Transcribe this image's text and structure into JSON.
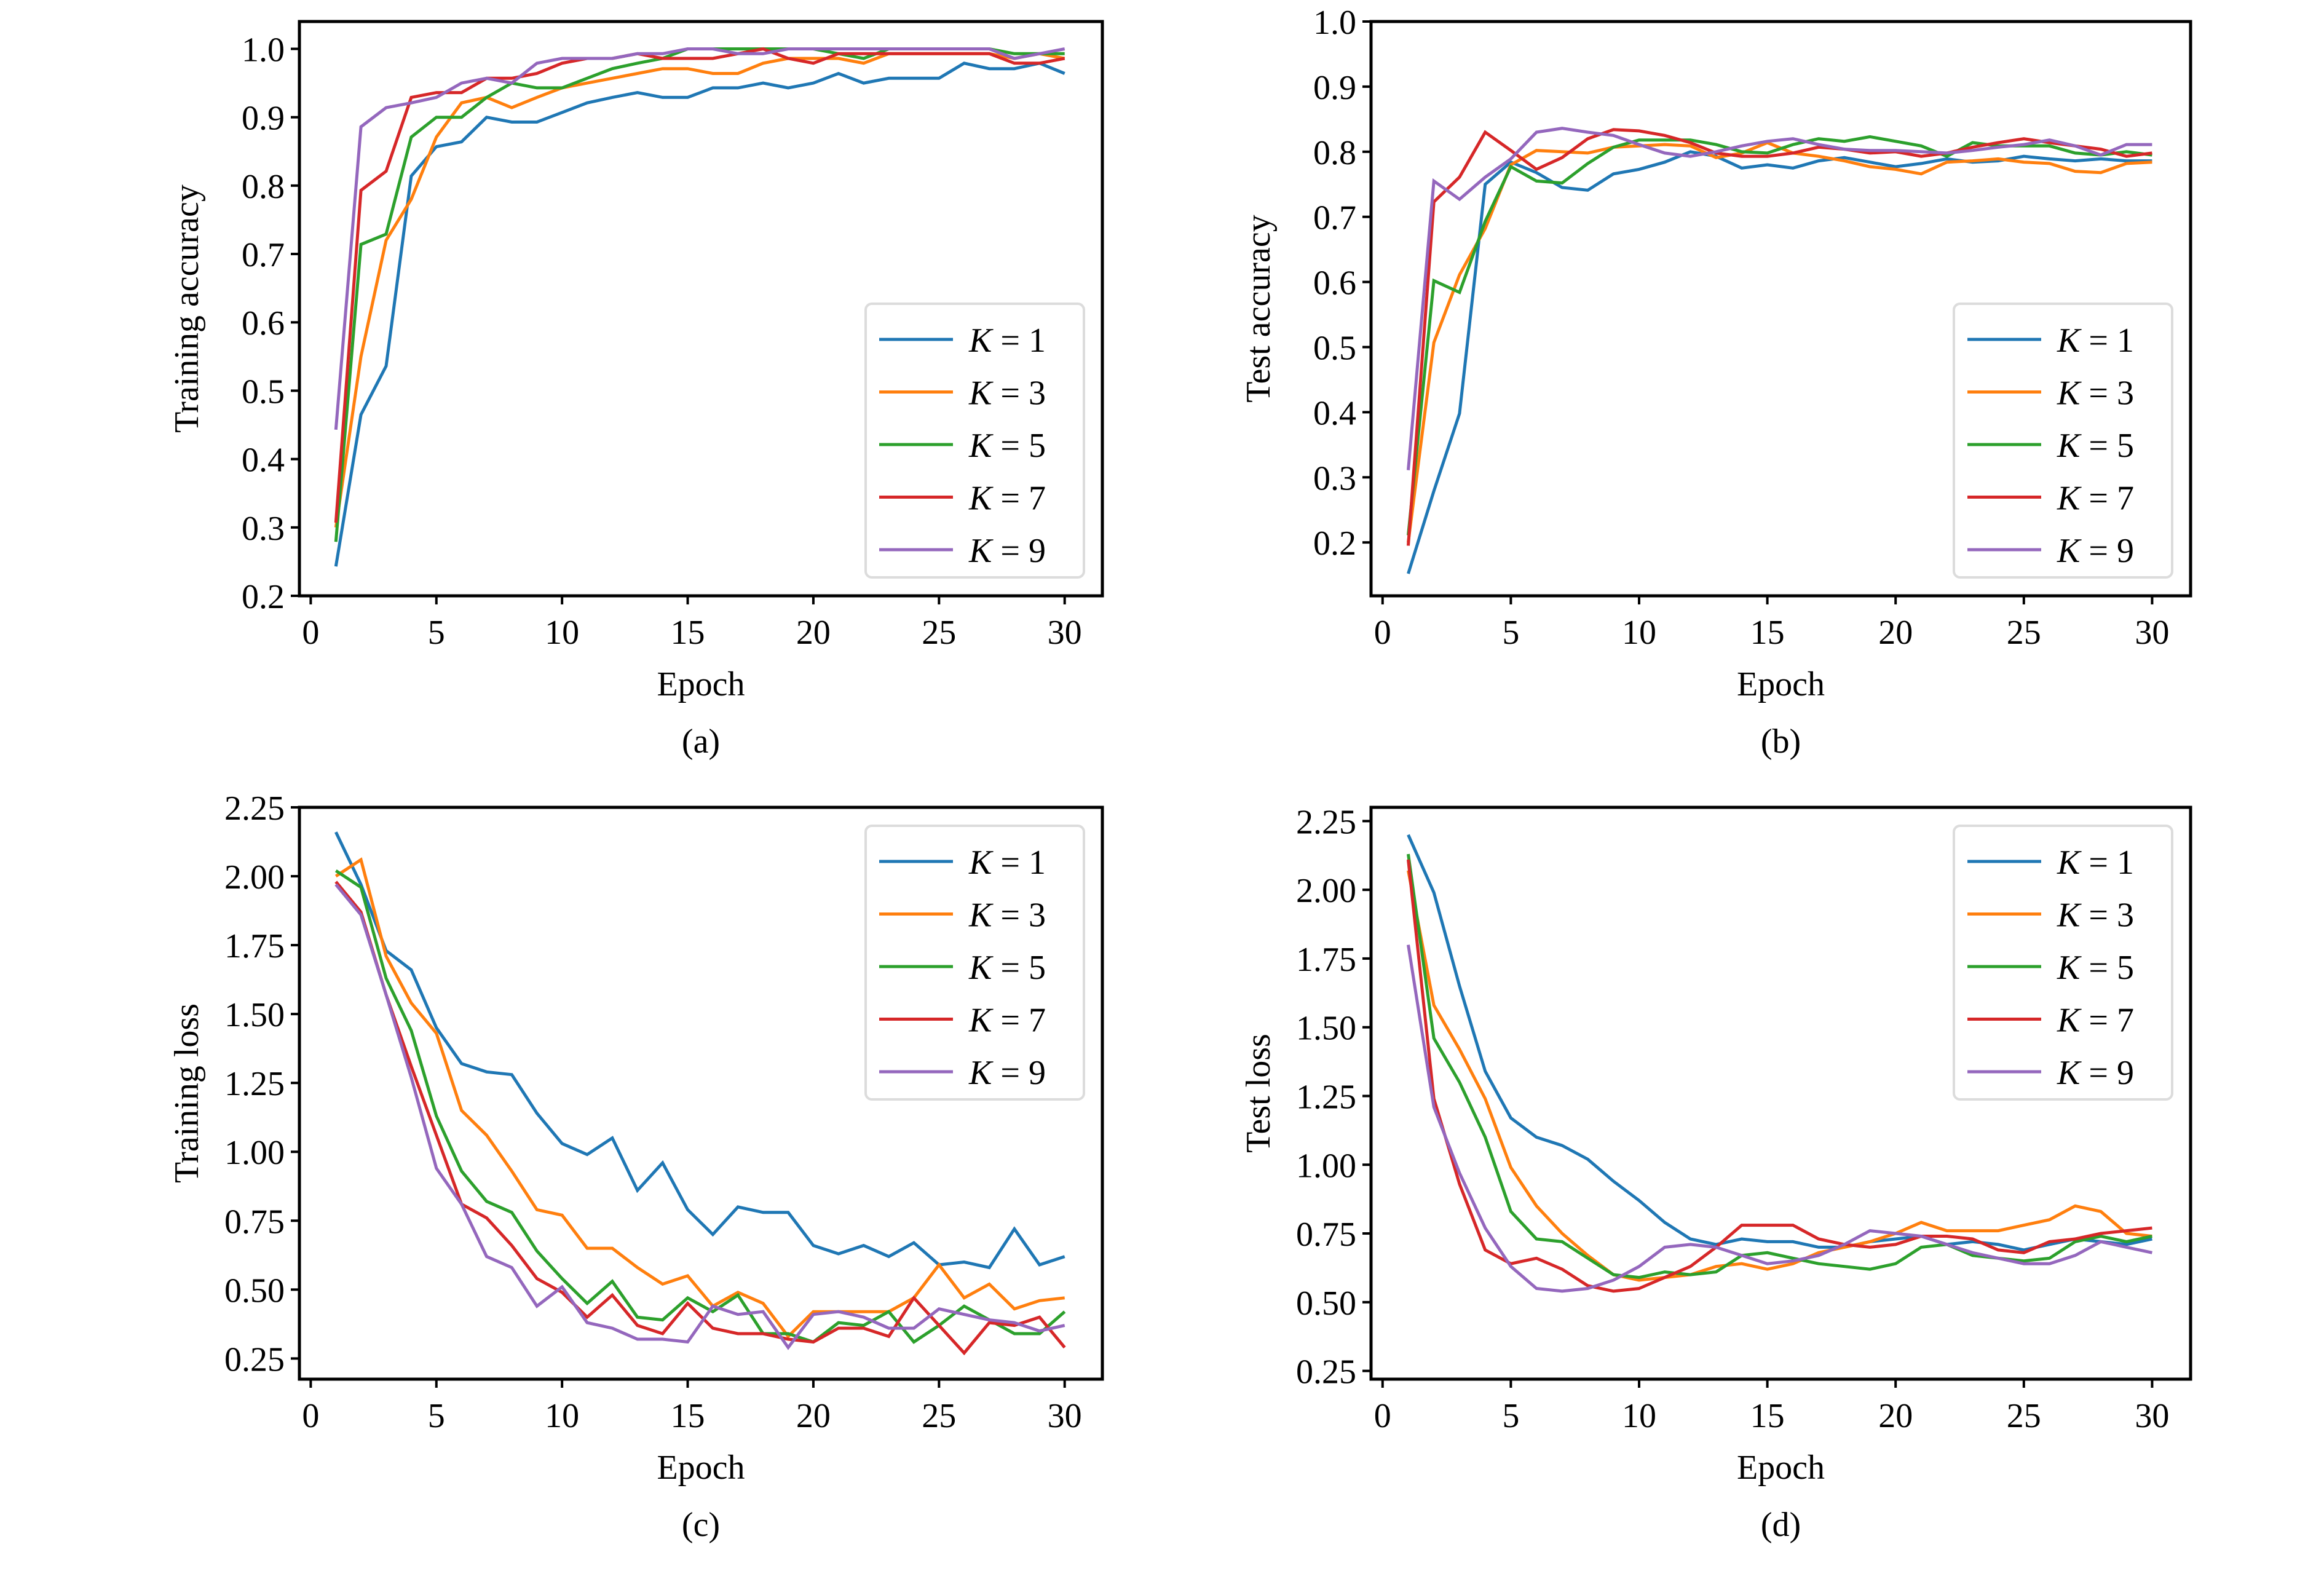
{
  "figure": {
    "colors": {
      "K = 1": "#1f77b4",
      "K = 3": "#ff7f0e",
      "K = 5": "#2ca02c",
      "K = 7": "#d62728",
      "K = 9": "#9467bd"
    },
    "legend_entries": [
      {
        "var": "K",
        "eq": " = 1",
        "key": "K = 1"
      },
      {
        "var": "K",
        "eq": " = 3",
        "key": "K = 3"
      },
      {
        "var": "K",
        "eq": " = 5",
        "key": "K = 5"
      },
      {
        "var": "K",
        "eq": " = 7",
        "key": "K = 7"
      },
      {
        "var": "K",
        "eq": " = 9",
        "key": "K = 9"
      }
    ]
  },
  "chart_data": [
    {
      "id": "a",
      "type": "line",
      "caption": "(a)",
      "title": "",
      "xlabel": "Epoch",
      "ylabel": "Training accuracy",
      "xlim": [
        -0.45,
        31.5
      ],
      "ylim": [
        0.2,
        1.04
      ],
      "xticks": [
        0,
        5,
        10,
        15,
        20,
        25,
        30
      ],
      "xtick_labels": [
        "0",
        "5",
        "10",
        "15",
        "20",
        "25",
        "30"
      ],
      "yticks": [
        0.2,
        0.3,
        0.4,
        0.5,
        0.6,
        0.7,
        0.8,
        0.9,
        1.0
      ],
      "ytick_labels": [
        "0.2",
        "0.3",
        "0.4",
        "0.5",
        "0.6",
        "0.7",
        "0.8",
        "0.9",
        "1.0"
      ],
      "grid": false,
      "legend_position": "lower-right",
      "x": [
        1,
        2,
        3,
        4,
        5,
        6,
        7,
        8,
        9,
        10,
        11,
        12,
        13,
        14,
        15,
        16,
        17,
        18,
        19,
        20,
        21,
        22,
        23,
        24,
        25,
        26,
        27,
        28,
        29,
        30
      ],
      "series": [
        {
          "name": "K = 1",
          "values": [
            0.243,
            0.465,
            0.536,
            0.814,
            0.857,
            0.864,
            0.9,
            0.893,
            0.893,
            0.907,
            0.921,
            0.929,
            0.936,
            0.929,
            0.929,
            0.943,
            0.943,
            0.95,
            0.943,
            0.95,
            0.964,
            0.95,
            0.957,
            0.957,
            0.957,
            0.979,
            0.971,
            0.971,
            0.979,
            0.964
          ]
        },
        {
          "name": "K = 3",
          "values": [
            0.3,
            0.55,
            0.72,
            0.78,
            0.871,
            0.921,
            0.929,
            0.914,
            0.929,
            0.943,
            0.95,
            0.957,
            0.964,
            0.971,
            0.971,
            0.964,
            0.964,
            0.979,
            0.986,
            0.986,
            0.986,
            0.979,
            0.993,
            0.993,
            0.993,
            0.993,
            0.993,
            0.986,
            0.993,
            0.986
          ]
        },
        {
          "name": "K = 5",
          "values": [
            0.279,
            0.714,
            0.729,
            0.871,
            0.9,
            0.9,
            0.929,
            0.95,
            0.943,
            0.943,
            0.957,
            0.971,
            0.979,
            0.986,
            1.0,
            1.0,
            1.0,
            1.0,
            1.0,
            1.0,
            0.993,
            0.986,
            1.0,
            1.0,
            1.0,
            1.0,
            1.0,
            0.993,
            0.993,
            0.993
          ]
        },
        {
          "name": "K = 7",
          "values": [
            0.307,
            0.793,
            0.821,
            0.929,
            0.936,
            0.936,
            0.957,
            0.957,
            0.964,
            0.979,
            0.986,
            0.986,
            0.993,
            0.986,
            0.986,
            0.986,
            0.993,
            1.0,
            0.986,
            0.979,
            0.993,
            0.993,
            0.993,
            0.993,
            0.993,
            0.993,
            0.993,
            0.979,
            0.979,
            0.986
          ]
        },
        {
          "name": "K = 9",
          "values": [
            0.443,
            0.886,
            0.914,
            0.921,
            0.929,
            0.95,
            0.957,
            0.95,
            0.979,
            0.986,
            0.986,
            0.986,
            0.993,
            0.993,
            1.0,
            1.0,
            0.993,
            0.993,
            1.0,
            1.0,
            1.0,
            1.0,
            1.0,
            1.0,
            1.0,
            1.0,
            1.0,
            0.986,
            0.993,
            1.0
          ]
        }
      ]
    },
    {
      "id": "b",
      "type": "line",
      "caption": "(b)",
      "title": "",
      "xlabel": "Epoch",
      "ylabel": "Test accuracy",
      "xlim": [
        -0.45,
        31.5
      ],
      "ylim": [
        0.118,
        1.0
      ],
      "xticks": [
        0,
        5,
        10,
        15,
        20,
        25,
        30
      ],
      "xtick_labels": [
        "0",
        "5",
        "10",
        "15",
        "20",
        "25",
        "30"
      ],
      "yticks": [
        0.2,
        0.3,
        0.4,
        0.5,
        0.6,
        0.7,
        0.8,
        0.9,
        1.0
      ],
      "ytick_labels": [
        "0.2",
        "0.3",
        "0.4",
        "0.5",
        "0.6",
        "0.7",
        "0.8",
        "0.9",
        "1.0"
      ],
      "grid": false,
      "legend_position": "lower-right",
      "x": [
        1,
        2,
        3,
        4,
        5,
        6,
        7,
        8,
        9,
        10,
        11,
        12,
        13,
        14,
        15,
        16,
        17,
        18,
        19,
        20,
        21,
        22,
        23,
        24,
        25,
        26,
        27,
        28,
        29,
        30
      ],
      "series": [
        {
          "name": "K = 1",
          "values": [
            0.152,
            0.279,
            0.398,
            0.75,
            0.784,
            0.768,
            0.745,
            0.741,
            0.766,
            0.773,
            0.784,
            0.8,
            0.793,
            0.775,
            0.78,
            0.775,
            0.786,
            0.791,
            0.784,
            0.777,
            0.782,
            0.789,
            0.784,
            0.786,
            0.793,
            0.789,
            0.786,
            0.789,
            0.786,
            0.786
          ]
        },
        {
          "name": "K = 3",
          "values": [
            0.2,
            0.507,
            0.611,
            0.682,
            0.78,
            0.802,
            0.8,
            0.798,
            0.807,
            0.809,
            0.811,
            0.809,
            0.791,
            0.798,
            0.814,
            0.798,
            0.793,
            0.786,
            0.777,
            0.773,
            0.766,
            0.784,
            0.786,
            0.789,
            0.784,
            0.782,
            0.77,
            0.768,
            0.782,
            0.784
          ]
        },
        {
          "name": "K = 5",
          "values": [
            0.211,
            0.602,
            0.584,
            0.693,
            0.777,
            0.755,
            0.752,
            0.782,
            0.807,
            0.818,
            0.818,
            0.818,
            0.811,
            0.8,
            0.798,
            0.811,
            0.82,
            0.816,
            0.823,
            0.816,
            0.809,
            0.793,
            0.814,
            0.809,
            0.809,
            0.809,
            0.798,
            0.795,
            0.8,
            0.795
          ]
        },
        {
          "name": "K = 7",
          "values": [
            0.195,
            0.723,
            0.761,
            0.83,
            0.802,
            0.773,
            0.791,
            0.82,
            0.834,
            0.832,
            0.825,
            0.814,
            0.798,
            0.793,
            0.793,
            0.798,
            0.807,
            0.804,
            0.798,
            0.8,
            0.793,
            0.798,
            0.807,
            0.814,
            0.82,
            0.814,
            0.809,
            0.804,
            0.793,
            0.798
          ]
        },
        {
          "name": "K = 9",
          "values": [
            0.311,
            0.755,
            0.727,
            0.761,
            0.789,
            0.83,
            0.836,
            0.83,
            0.825,
            0.811,
            0.798,
            0.793,
            0.8,
            0.809,
            0.816,
            0.82,
            0.811,
            0.804,
            0.802,
            0.802,
            0.8,
            0.798,
            0.802,
            0.807,
            0.811,
            0.818,
            0.809,
            0.795,
            0.811,
            0.811
          ]
        }
      ]
    },
    {
      "id": "c",
      "type": "line",
      "caption": "(c)",
      "title": "",
      "xlabel": "Epoch",
      "ylabel": "Training loss",
      "xlim": [
        -0.45,
        31.5
      ],
      "ylim": [
        0.175,
        2.25
      ],
      "xticks": [
        0,
        5,
        10,
        15,
        20,
        25,
        30
      ],
      "xtick_labels": [
        "0",
        "5",
        "10",
        "15",
        "20",
        "25",
        "30"
      ],
      "yticks": [
        0.25,
        0.5,
        0.75,
        1.0,
        1.25,
        1.5,
        1.75,
        2.0,
        2.25
      ],
      "ytick_labels": [
        "0.25",
        "0.50",
        "0.75",
        "1.00",
        "1.25",
        "1.50",
        "1.75",
        "2.00",
        "2.25"
      ],
      "grid": false,
      "legend_position": "upper-right",
      "x": [
        1,
        2,
        3,
        4,
        5,
        6,
        7,
        8,
        9,
        10,
        11,
        12,
        13,
        14,
        15,
        16,
        17,
        18,
        19,
        20,
        21,
        22,
        23,
        24,
        25,
        26,
        27,
        28,
        29,
        30
      ],
      "series": [
        {
          "name": "K = 1",
          "values": [
            2.16,
            1.97,
            1.73,
            1.66,
            1.45,
            1.32,
            1.29,
            1.28,
            1.14,
            1.03,
            0.99,
            1.05,
            0.86,
            0.96,
            0.79,
            0.7,
            0.8,
            0.78,
            0.78,
            0.66,
            0.63,
            0.66,
            0.62,
            0.67,
            0.59,
            0.6,
            0.58,
            0.72,
            0.59,
            0.62
          ]
        },
        {
          "name": "K = 3",
          "values": [
            2.0,
            2.06,
            1.71,
            1.54,
            1.43,
            1.15,
            1.06,
            0.93,
            0.79,
            0.77,
            0.65,
            0.65,
            0.58,
            0.52,
            0.55,
            0.44,
            0.49,
            0.45,
            0.33,
            0.42,
            0.42,
            0.42,
            0.42,
            0.47,
            0.59,
            0.47,
            0.52,
            0.43,
            0.46,
            0.47
          ]
        },
        {
          "name": "K = 5",
          "values": [
            2.02,
            1.96,
            1.63,
            1.44,
            1.13,
            0.93,
            0.82,
            0.78,
            0.64,
            0.54,
            0.45,
            0.53,
            0.4,
            0.39,
            0.47,
            0.42,
            0.48,
            0.34,
            0.34,
            0.31,
            0.38,
            0.37,
            0.42,
            0.31,
            0.37,
            0.44,
            0.39,
            0.34,
            0.34,
            0.42
          ]
        },
        {
          "name": "K = 7",
          "values": [
            1.98,
            1.87,
            1.57,
            1.31,
            1.06,
            0.81,
            0.76,
            0.66,
            0.54,
            0.49,
            0.4,
            0.48,
            0.37,
            0.34,
            0.45,
            0.36,
            0.34,
            0.34,
            0.32,
            0.31,
            0.36,
            0.36,
            0.33,
            0.47,
            0.37,
            0.27,
            0.38,
            0.37,
            0.4,
            0.29
          ]
        },
        {
          "name": "K = 9",
          "values": [
            1.97,
            1.86,
            1.57,
            1.27,
            0.94,
            0.81,
            0.62,
            0.58,
            0.44,
            0.51,
            0.38,
            0.36,
            0.32,
            0.32,
            0.31,
            0.44,
            0.41,
            0.42,
            0.29,
            0.41,
            0.42,
            0.4,
            0.36,
            0.36,
            0.43,
            0.41,
            0.39,
            0.38,
            0.35,
            0.37
          ]
        }
      ]
    },
    {
      "id": "d",
      "type": "line",
      "caption": "(d)",
      "title": "",
      "xlabel": "Epoch",
      "ylabel": "Test loss",
      "xlim": [
        -0.45,
        31.5
      ],
      "ylim": [
        0.22,
        2.3
      ],
      "xticks": [
        0,
        5,
        10,
        15,
        20,
        25,
        30
      ],
      "xtick_labels": [
        "0",
        "5",
        "10",
        "15",
        "20",
        "25",
        "30"
      ],
      "yticks": [
        0.25,
        0.5,
        0.75,
        1.0,
        1.25,
        1.5,
        1.75,
        2.0,
        2.25
      ],
      "ytick_labels": [
        "0.25",
        "0.50",
        "0.75",
        "1.00",
        "1.25",
        "1.50",
        "1.75",
        "2.00",
        "2.25"
      ],
      "grid": false,
      "legend_position": "upper-right",
      "x": [
        1,
        2,
        3,
        4,
        5,
        6,
        7,
        8,
        9,
        10,
        11,
        12,
        13,
        14,
        15,
        16,
        17,
        18,
        19,
        20,
        21,
        22,
        23,
        24,
        25,
        26,
        27,
        28,
        29,
        30
      ],
      "series": [
        {
          "name": "K = 1",
          "values": [
            2.2,
            1.99,
            1.65,
            1.34,
            1.17,
            1.1,
            1.07,
            1.02,
            0.94,
            0.87,
            0.79,
            0.73,
            0.71,
            0.73,
            0.72,
            0.72,
            0.7,
            0.7,
            0.72,
            0.73,
            0.74,
            0.71,
            0.72,
            0.71,
            0.69,
            0.71,
            0.73,
            0.72,
            0.71,
            0.73
          ]
        },
        {
          "name": "K = 3",
          "values": [
            2.07,
            1.58,
            1.42,
            1.24,
            0.99,
            0.85,
            0.75,
            0.67,
            0.6,
            0.58,
            0.59,
            0.6,
            0.63,
            0.64,
            0.62,
            0.64,
            0.68,
            0.7,
            0.72,
            0.75,
            0.79,
            0.76,
            0.76,
            0.76,
            0.78,
            0.8,
            0.85,
            0.83,
            0.75,
            0.74
          ]
        },
        {
          "name": "K = 5",
          "values": [
            2.13,
            1.46,
            1.3,
            1.1,
            0.83,
            0.73,
            0.72,
            0.66,
            0.6,
            0.59,
            0.61,
            0.6,
            0.61,
            0.67,
            0.68,
            0.66,
            0.64,
            0.63,
            0.62,
            0.64,
            0.7,
            0.71,
            0.67,
            0.66,
            0.65,
            0.66,
            0.72,
            0.74,
            0.72,
            0.74
          ]
        },
        {
          "name": "K = 7",
          "values": [
            2.11,
            1.24,
            0.93,
            0.69,
            0.64,
            0.66,
            0.62,
            0.56,
            0.54,
            0.55,
            0.59,
            0.63,
            0.7,
            0.78,
            0.78,
            0.78,
            0.73,
            0.71,
            0.7,
            0.71,
            0.74,
            0.74,
            0.73,
            0.69,
            0.68,
            0.72,
            0.73,
            0.75,
            0.76,
            0.77
          ]
        },
        {
          "name": "K = 9",
          "values": [
            1.8,
            1.21,
            0.97,
            0.77,
            0.63,
            0.55,
            0.54,
            0.55,
            0.58,
            0.63,
            0.7,
            0.71,
            0.7,
            0.67,
            0.64,
            0.65,
            0.67,
            0.71,
            0.76,
            0.75,
            0.74,
            0.71,
            0.68,
            0.66,
            0.64,
            0.64,
            0.67,
            0.72,
            0.7,
            0.68
          ]
        }
      ]
    }
  ]
}
